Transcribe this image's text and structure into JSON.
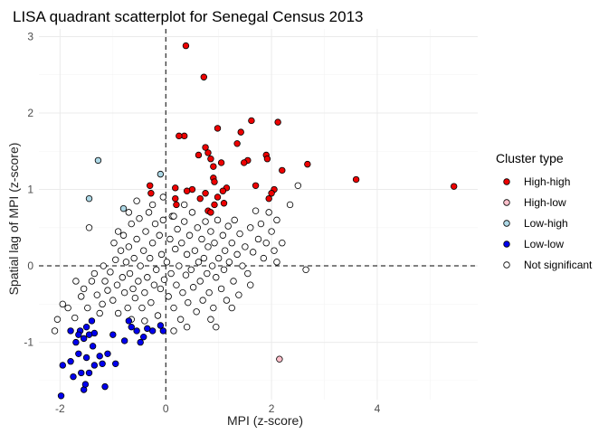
{
  "chart_data": {
    "type": "scatter",
    "title": "LISA quadrant scatterplot for Senegal Census 2013",
    "xlabel": "MPI (z-score)",
    "ylabel": "Spatial lag of MPI (z-score)",
    "xlim": [
      -2.4,
      5.9
    ],
    "ylim": [
      -1.75,
      3.1
    ],
    "x_ticks": [
      -2,
      0,
      2,
      4
    ],
    "y_ticks": [
      -1,
      0,
      1,
      2,
      3
    ],
    "x_tick_labels": [
      "-2",
      "0",
      "2",
      "4"
    ],
    "y_tick_labels": [
      "-1",
      "0",
      "1",
      "2",
      "3"
    ],
    "grid": true,
    "reference_lines": {
      "x": 0,
      "y": 0,
      "style": "dashed"
    },
    "legend": {
      "title": "Cluster type",
      "placement": "right",
      "entries": [
        {
          "label": "High-high",
          "color": "#ee0000"
        },
        {
          "label": "High-low",
          "color": "#ffc0cb"
        },
        {
          "label": "Low-high",
          "color": "#add8e6"
        },
        {
          "label": "Low-low",
          "color": "#0000ee"
        },
        {
          "label": "Not significant",
          "color": "#ffffff"
        }
      ]
    },
    "series": [
      {
        "name": "High-high",
        "color": "#ee0000",
        "points": [
          [
            0.38,
            2.88
          ],
          [
            0.72,
            2.47
          ],
          [
            1.62,
            1.9
          ],
          [
            2.12,
            1.88
          ],
          [
            0.98,
            1.8
          ],
          [
            0.35,
            1.7
          ],
          [
            0.25,
            1.7
          ],
          [
            1.42,
            1.75
          ],
          [
            1.35,
            1.6
          ],
          [
            0.75,
            1.55
          ],
          [
            0.8,
            1.48
          ],
          [
            0.62,
            1.45
          ],
          [
            0.85,
            1.4
          ],
          [
            1.55,
            1.38
          ],
          [
            1.9,
            1.45
          ],
          [
            1.92,
            1.4
          ],
          [
            1.48,
            1.35
          ],
          [
            1.05,
            1.35
          ],
          [
            0.9,
            1.3
          ],
          [
            2.68,
            1.33
          ],
          [
            0.9,
            1.15
          ],
          [
            0.92,
            1.1
          ],
          [
            2.2,
            1.25
          ],
          [
            3.6,
            1.13
          ],
          [
            5.45,
            1.04
          ],
          [
            -0.3,
            1.05
          ],
          [
            -0.28,
            0.95
          ],
          [
            0.18,
            1.02
          ],
          [
            0.5,
            1.0
          ],
          [
            0.75,
            0.95
          ],
          [
            1.15,
            1.02
          ],
          [
            1.08,
            0.98
          ],
          [
            1.7,
            1.05
          ],
          [
            2.05,
            1.0
          ],
          [
            1.95,
            0.88
          ],
          [
            2.0,
            0.95
          ],
          [
            1.1,
            0.82
          ],
          [
            0.92,
            0.8
          ],
          [
            0.18,
            0.88
          ],
          [
            0.2,
            0.8
          ],
          [
            0.4,
            0.98
          ],
          [
            0.8,
            0.72
          ],
          [
            0.85,
            0.7
          ],
          [
            0.98,
            0.9
          ],
          [
            0.65,
            0.88
          ]
        ]
      },
      {
        "name": "High-low",
        "color": "#ffc0cb",
        "points": [
          [
            2.15,
            -1.22
          ]
        ]
      },
      {
        "name": "Low-high",
        "color": "#add8e6",
        "points": [
          [
            -1.28,
            1.38
          ],
          [
            -0.1,
            1.2
          ],
          [
            -1.45,
            0.88
          ],
          [
            -0.8,
            0.75
          ]
        ]
      },
      {
        "name": "Low-low",
        "color": "#0000ee",
        "points": [
          [
            -1.98,
            -1.7
          ],
          [
            -1.55,
            -1.62
          ],
          [
            -1.52,
            -1.55
          ],
          [
            -1.15,
            -1.58
          ],
          [
            -1.75,
            -1.45
          ],
          [
            -1.6,
            -1.4
          ],
          [
            -1.95,
            -1.3
          ],
          [
            -1.45,
            -1.4
          ],
          [
            -1.8,
            -1.25
          ],
          [
            -1.35,
            -1.3
          ],
          [
            -1.2,
            -1.28
          ],
          [
            -1.5,
            -1.2
          ],
          [
            -1.65,
            -1.15
          ],
          [
            -1.1,
            -1.15
          ],
          [
            -1.25,
            -1.18
          ],
          [
            -0.95,
            -1.28
          ],
          [
            -1.7,
            -1.0
          ],
          [
            -1.38,
            -1.05
          ],
          [
            -1.55,
            -0.95
          ],
          [
            -1.8,
            -0.85
          ],
          [
            -1.35,
            -0.88
          ],
          [
            -1.5,
            -0.8
          ],
          [
            -1.62,
            -0.85
          ],
          [
            -1.0,
            -0.9
          ],
          [
            -0.78,
            -0.98
          ],
          [
            -0.65,
            -0.8
          ],
          [
            -0.55,
            -0.85
          ],
          [
            -0.42,
            -0.93
          ],
          [
            -0.48,
            -1.0
          ],
          [
            -0.25,
            -0.85
          ],
          [
            -0.35,
            -0.82
          ],
          [
            -0.05,
            -0.85
          ],
          [
            -0.1,
            -0.78
          ],
          [
            -1.4,
            -0.72
          ],
          [
            -0.7,
            -0.72
          ],
          [
            -1.65,
            -0.9
          ],
          [
            -1.45,
            -0.9
          ]
        ]
      },
      {
        "name": "Not significant",
        "color": "#ffffff",
        "points": [
          [
            -2.1,
            -0.85
          ],
          [
            -1.95,
            -0.5
          ],
          [
            -1.85,
            -0.55
          ],
          [
            -1.72,
            -0.68
          ],
          [
            -1.6,
            -0.4
          ],
          [
            -1.55,
            -0.3
          ],
          [
            -1.48,
            -0.55
          ],
          [
            -1.4,
            -0.2
          ],
          [
            -1.35,
            -0.1
          ],
          [
            -1.3,
            -0.38
          ],
          [
            -1.25,
            -0.62
          ],
          [
            -1.2,
            -0.5
          ],
          [
            -1.18,
            0.0
          ],
          [
            -1.15,
            -0.2
          ],
          [
            -1.1,
            -0.32
          ],
          [
            -1.05,
            -0.08
          ],
          [
            -1.0,
            -0.45
          ],
          [
            -0.98,
            0.3
          ],
          [
            -0.95,
            0.08
          ],
          [
            -0.92,
            -0.25
          ],
          [
            -0.9,
            -0.62
          ],
          [
            -0.85,
            0.2
          ],
          [
            -0.82,
            -0.15
          ],
          [
            -0.8,
            0.4
          ],
          [
            -0.78,
            -0.35
          ],
          [
            -0.75,
            0.05
          ],
          [
            -0.72,
            -0.55
          ],
          [
            -0.7,
            0.25
          ],
          [
            -0.68,
            -0.1
          ],
          [
            -0.65,
            0.55
          ],
          [
            -0.62,
            -0.3
          ],
          [
            -0.6,
            0.1
          ],
          [
            -0.58,
            -0.42
          ],
          [
            -0.55,
            0.35
          ],
          [
            -0.52,
            -0.2
          ],
          [
            -0.5,
            0.62
          ],
          [
            -0.48,
            0.0
          ],
          [
            -0.45,
            -0.55
          ],
          [
            -0.42,
            0.2
          ],
          [
            -0.4,
            -0.35
          ],
          [
            -0.38,
            0.45
          ],
          [
            -0.35,
            -0.15
          ],
          [
            -0.32,
            0.7
          ],
          [
            -0.3,
            0.1
          ],
          [
            -0.28,
            -0.48
          ],
          [
            -0.25,
            0.3
          ],
          [
            -0.22,
            -0.25
          ],
          [
            -0.2,
            0.55
          ],
          [
            -0.18,
            -0.05
          ],
          [
            -0.15,
            -0.65
          ],
          [
            -0.12,
            0.4
          ],
          [
            -0.1,
            -0.3
          ],
          [
            -0.08,
            0.15
          ],
          [
            -0.05,
            0.6
          ],
          [
            -0.03,
            -0.18
          ],
          [
            0.02,
            0.05
          ],
          [
            0.05,
            -0.4
          ],
          [
            0.08,
            0.35
          ],
          [
            0.1,
            -0.1
          ],
          [
            0.12,
            0.65
          ],
          [
            0.15,
            -0.55
          ],
          [
            0.18,
            0.22
          ],
          [
            0.2,
            -0.25
          ],
          [
            0.22,
            0.48
          ],
          [
            0.25,
            0.0
          ],
          [
            0.28,
            -0.7
          ],
          [
            0.3,
            0.3
          ],
          [
            0.32,
            -0.35
          ],
          [
            0.35,
            0.58
          ],
          [
            0.38,
            -0.12
          ],
          [
            0.4,
            0.15
          ],
          [
            0.42,
            -0.48
          ],
          [
            0.45,
            0.4
          ],
          [
            0.48,
            -0.05
          ],
          [
            0.5,
            0.7
          ],
          [
            0.52,
            -0.28
          ],
          [
            0.55,
            0.2
          ],
          [
            0.58,
            -0.6
          ],
          [
            0.6,
            0.5
          ],
          [
            0.62,
            0.05
          ],
          [
            0.65,
            -0.2
          ],
          [
            0.68,
            0.35
          ],
          [
            0.7,
            -0.45
          ],
          [
            0.72,
            0.1
          ],
          [
            0.75,
            0.58
          ],
          [
            0.78,
            -0.1
          ],
          [
            0.8,
            0.25
          ],
          [
            0.82,
            -0.35
          ],
          [
            0.85,
            0.45
          ],
          [
            0.88,
            0.0
          ],
          [
            0.9,
            -0.55
          ],
          [
            0.92,
            0.3
          ],
          [
            0.95,
            -0.15
          ],
          [
            0.98,
            0.6
          ],
          [
            1.0,
            0.1
          ],
          [
            1.05,
            -0.3
          ],
          [
            1.08,
            0.4
          ],
          [
            1.1,
            -0.05
          ],
          [
            1.12,
            0.2
          ],
          [
            1.15,
            -0.45
          ],
          [
            1.18,
            0.52
          ],
          [
            1.2,
            0.05
          ],
          [
            1.25,
            0.3
          ],
          [
            1.28,
            -0.2
          ],
          [
            1.3,
            0.6
          ],
          [
            1.35,
            0.15
          ],
          [
            1.38,
            -0.38
          ],
          [
            1.4,
            0.42
          ],
          [
            1.45,
            0.0
          ],
          [
            1.5,
            0.25
          ],
          [
            1.55,
            -0.1
          ],
          [
            1.6,
            0.5
          ],
          [
            1.65,
            0.18
          ],
          [
            1.7,
            0.72
          ],
          [
            1.75,
            0.35
          ],
          [
            1.8,
            0.55
          ],
          [
            1.9,
            0.3
          ],
          [
            1.95,
            0.7
          ],
          [
            2.0,
            0.45
          ],
          [
            2.05,
            0.2
          ],
          [
            2.1,
            0.6
          ],
          [
            2.2,
            0.3
          ],
          [
            2.35,
            0.8
          ],
          [
            2.5,
            1.05
          ],
          [
            2.65,
            -0.05
          ],
          [
            1.85,
            0.1
          ],
          [
            0.95,
            -0.8
          ],
          [
            0.15,
            -0.85
          ],
          [
            -0.4,
            -0.72
          ],
          [
            -0.65,
            -0.7
          ],
          [
            -1.45,
            0.5
          ],
          [
            -0.9,
            0.45
          ],
          [
            -0.7,
            0.7
          ],
          [
            -1.7,
            -0.2
          ],
          [
            -2.05,
            -0.7
          ],
          [
            -0.55,
            0.85
          ],
          [
            -0.25,
            0.8
          ],
          [
            0.35,
            0.8
          ],
          [
            -0.05,
            0.9
          ],
          [
            0.15,
            0.65
          ],
          [
            0.4,
            -0.8
          ],
          [
            0.85,
            -0.7
          ],
          [
            1.25,
            -0.55
          ],
          [
            1.6,
            -0.25
          ],
          [
            2.1,
            0.05
          ]
        ]
      }
    ]
  }
}
